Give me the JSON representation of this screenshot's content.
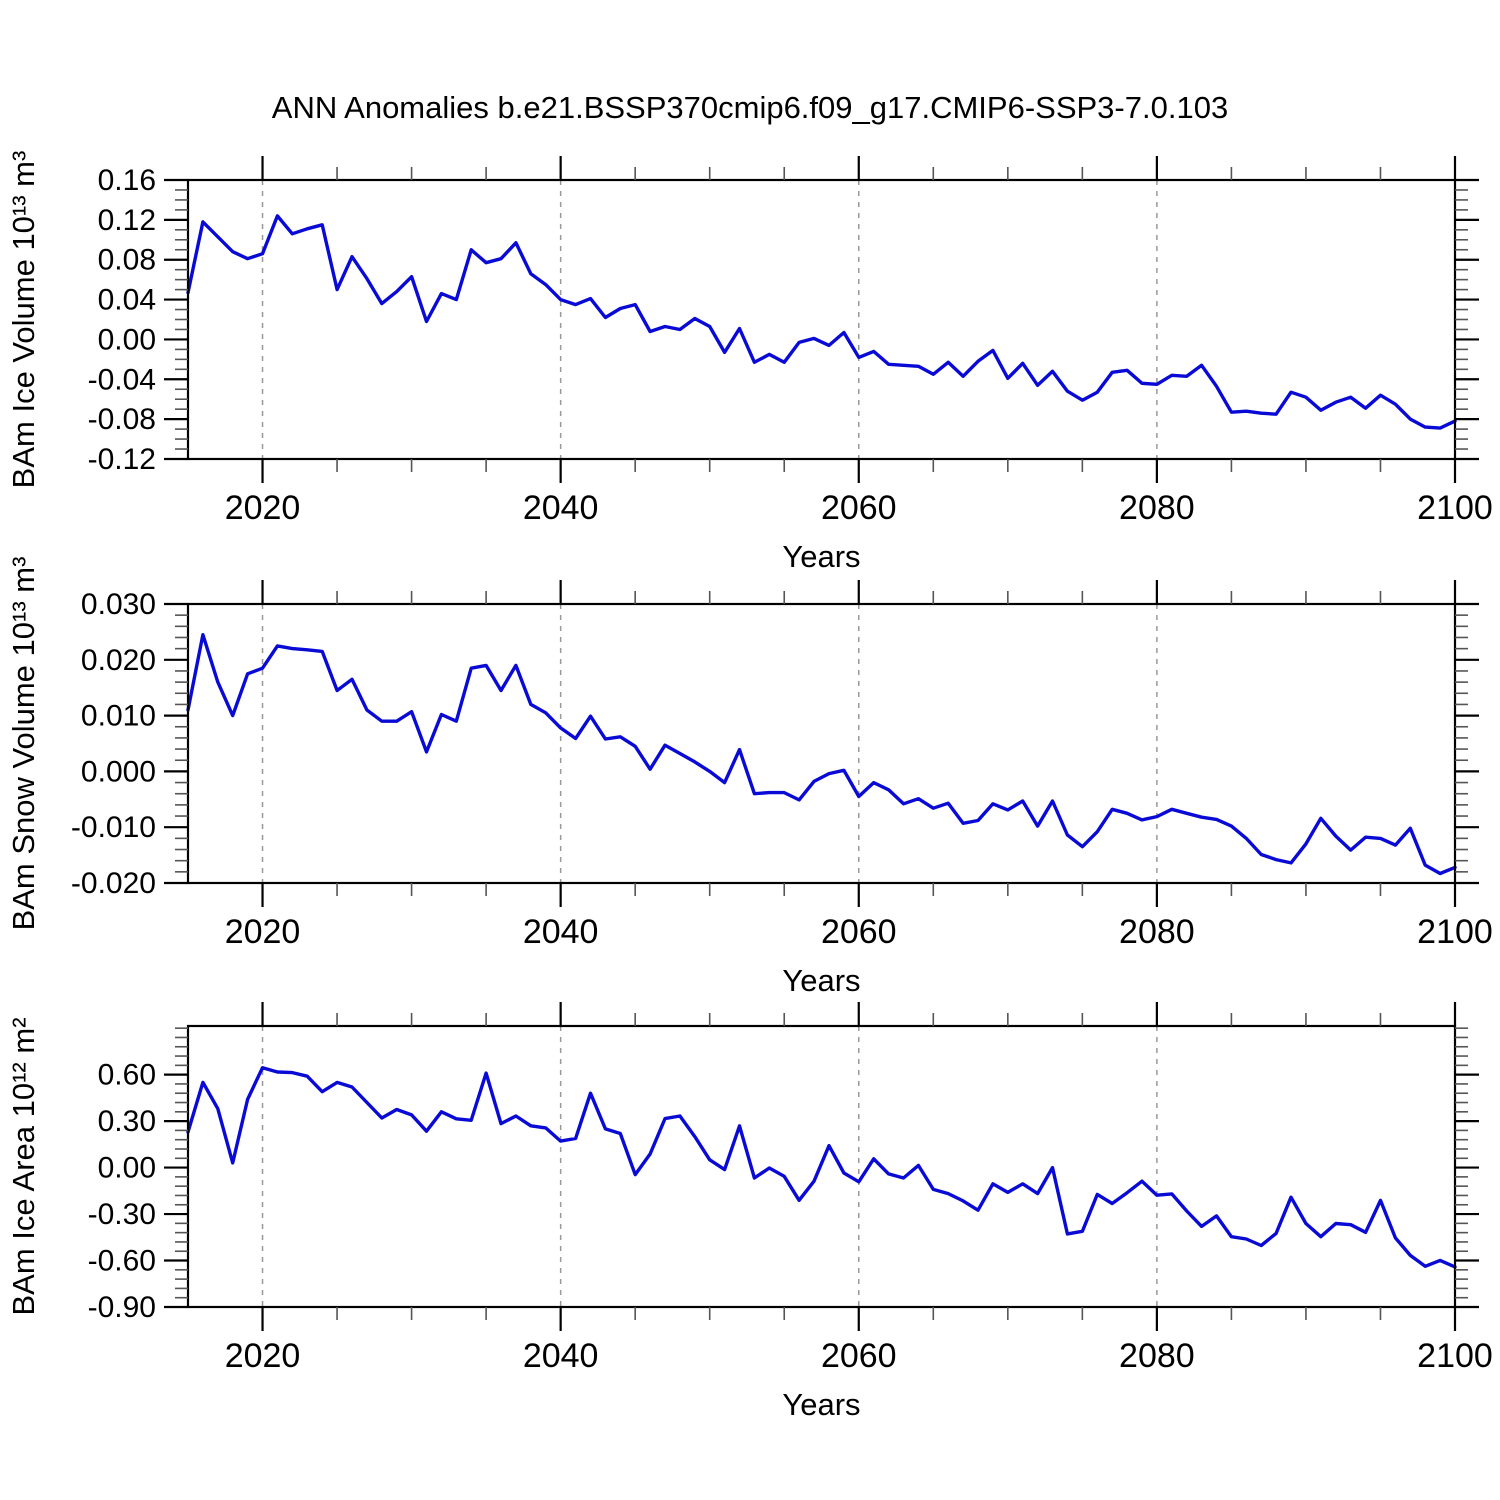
{
  "title": "ANN Anomalies b.e21.BSSP370cmip6.f09_g17.CMIP6-SSP3-7.0.103",
  "colors": {
    "line": "#0a0ad6",
    "grid": "#999999",
    "axis": "#000000",
    "minor_tick": "#555555",
    "background": "#ffffff"
  },
  "chart_data": {
    "type": "line",
    "x_label": "Years",
    "years_start": 2015,
    "years_end": 2100,
    "x_step": 1,
    "xlim": [
      2015,
      2100
    ],
    "xticks": [
      2020,
      2040,
      2060,
      2080,
      2100
    ],
    "xtick_labels": [
      "2020",
      "2040",
      "2060",
      "2080",
      "2100"
    ],
    "x_minor_step": 5,
    "grid_x": [
      2020,
      2040,
      2060,
      2080
    ],
    "legend": "none",
    "panels": [
      {
        "ylabel": "BAm Ice Volume 10¹³ m³",
        "xlabel": "Years",
        "ylim": [
          -0.12,
          0.16
        ],
        "ytick_values": [
          0.16,
          0.12,
          0.08,
          0.04,
          0.0,
          -0.04,
          -0.08,
          -0.12
        ],
        "ytick_labels": [
          "0.16",
          "0.12",
          "0.08",
          "0.04",
          "0.00",
          "-0.04",
          "-0.08",
          "-0.12"
        ],
        "y_minor_step": 0.01,
        "values": [
          0.047,
          0.118,
          0.103,
          0.088,
          0.081,
          0.086,
          0.124,
          0.106,
          0.111,
          0.115,
          0.05,
          0.083,
          0.061,
          0.036,
          0.048,
          0.063,
          0.018,
          0.046,
          0.04,
          0.09,
          0.077,
          0.081,
          0.097,
          0.066,
          0.055,
          0.04,
          0.035,
          0.041,
          0.022,
          0.031,
          0.035,
          0.008,
          0.013,
          0.01,
          0.021,
          0.013,
          -0.013,
          0.011,
          -0.023,
          -0.015,
          -0.023,
          -0.003,
          0.001,
          -0.006,
          0.007,
          -0.018,
          -0.012,
          -0.025,
          -0.026,
          -0.027,
          -0.035,
          -0.023,
          -0.037,
          -0.022,
          -0.011,
          -0.039,
          -0.024,
          -0.046,
          -0.032,
          -0.052,
          -0.061,
          -0.053,
          -0.033,
          -0.031,
          -0.044,
          -0.045,
          -0.036,
          -0.037,
          -0.026,
          -0.047,
          -0.073,
          -0.072,
          -0.074,
          -0.075,
          -0.053,
          -0.058,
          -0.071,
          -0.063,
          -0.058,
          -0.069,
          -0.056,
          -0.065,
          -0.08,
          -0.088,
          -0.089,
          -0.082
        ]
      },
      {
        "ylabel": "BAm Snow Volume 10¹³ m³",
        "xlabel": "Years",
        "ylim": [
          -0.02,
          0.03
        ],
        "ytick_values": [
          0.03,
          0.02,
          0.01,
          0.0,
          -0.01,
          -0.02
        ],
        "ytick_labels": [
          "0.030",
          "0.020",
          "0.010",
          "0.000",
          "-0.010",
          "-0.020"
        ],
        "y_minor_step": 0.002,
        "values": [
          0.011,
          0.0245,
          0.016,
          0.01,
          0.0175,
          0.0185,
          0.0225,
          0.022,
          0.0218,
          0.0215,
          0.0145,
          0.0165,
          0.011,
          0.009,
          0.009,
          0.0107,
          0.0035,
          0.0102,
          0.009,
          0.0185,
          0.019,
          0.0145,
          0.019,
          0.012,
          0.0105,
          0.0078,
          0.0059,
          0.0099,
          0.0058,
          0.0062,
          0.0045,
          0.0004,
          0.0047,
          0.0032,
          0.0017,
          0.0,
          -0.002,
          0.0039,
          -0.004,
          -0.0038,
          -0.0038,
          -0.0051,
          -0.0018,
          -0.0004,
          0.0002,
          -0.0045,
          -0.002,
          -0.0033,
          -0.0058,
          -0.0049,
          -0.0066,
          -0.0057,
          -0.0093,
          -0.0088,
          -0.0058,
          -0.0069,
          -0.0053,
          -0.0098,
          -0.0053,
          -0.0114,
          -0.0135,
          -0.0108,
          -0.0068,
          -0.0075,
          -0.0087,
          -0.0081,
          -0.0068,
          -0.0075,
          -0.0082,
          -0.0086,
          -0.0098,
          -0.012,
          -0.0149,
          -0.0158,
          -0.0164,
          -0.013,
          -0.0084,
          -0.0116,
          -0.0141,
          -0.0118,
          -0.012,
          -0.0132,
          -0.0102,
          -0.0168,
          -0.0183,
          -0.0172
        ]
      },
      {
        "ylabel": "BAm Ice Area 10¹² m²",
        "xlabel": "Years",
        "ylim": [
          -0.9,
          0.914
        ],
        "ytick_values": [
          0.6,
          0.3,
          0.0,
          -0.3,
          -0.6,
          -0.9
        ],
        "ytick_labels": [
          "0.60",
          "0.30",
          "0.00",
          "-0.30",
          "-0.60",
          "-0.90"
        ],
        "y_minor_step": 0.06,
        "values": [
          0.23,
          0.55,
          0.38,
          0.03,
          0.44,
          0.645,
          0.617,
          0.613,
          0.59,
          0.49,
          0.55,
          0.52,
          0.42,
          0.32,
          0.375,
          0.34,
          0.235,
          0.36,
          0.315,
          0.305,
          0.61,
          0.284,
          0.333,
          0.27,
          0.256,
          0.171,
          0.188,
          0.48,
          0.25,
          0.22,
          -0.045,
          0.088,
          0.316,
          0.333,
          0.2,
          0.05,
          -0.013,
          0.269,
          -0.067,
          -0.003,
          -0.056,
          -0.211,
          -0.088,
          0.141,
          -0.035,
          -0.092,
          0.057,
          -0.041,
          -0.067,
          0.014,
          -0.141,
          -0.168,
          -0.215,
          -0.275,
          -0.105,
          -0.16,
          -0.105,
          -0.168,
          0.0,
          -0.428,
          -0.411,
          -0.173,
          -0.232,
          -0.162,
          -0.088,
          -0.178,
          -0.17,
          -0.28,
          -0.38,
          -0.312,
          -0.446,
          -0.461,
          -0.503,
          -0.425,
          -0.191,
          -0.361,
          -0.446,
          -0.361,
          -0.369,
          -0.418,
          -0.212,
          -0.454,
          -0.567,
          -0.637,
          -0.599,
          -0.641
        ]
      }
    ]
  }
}
